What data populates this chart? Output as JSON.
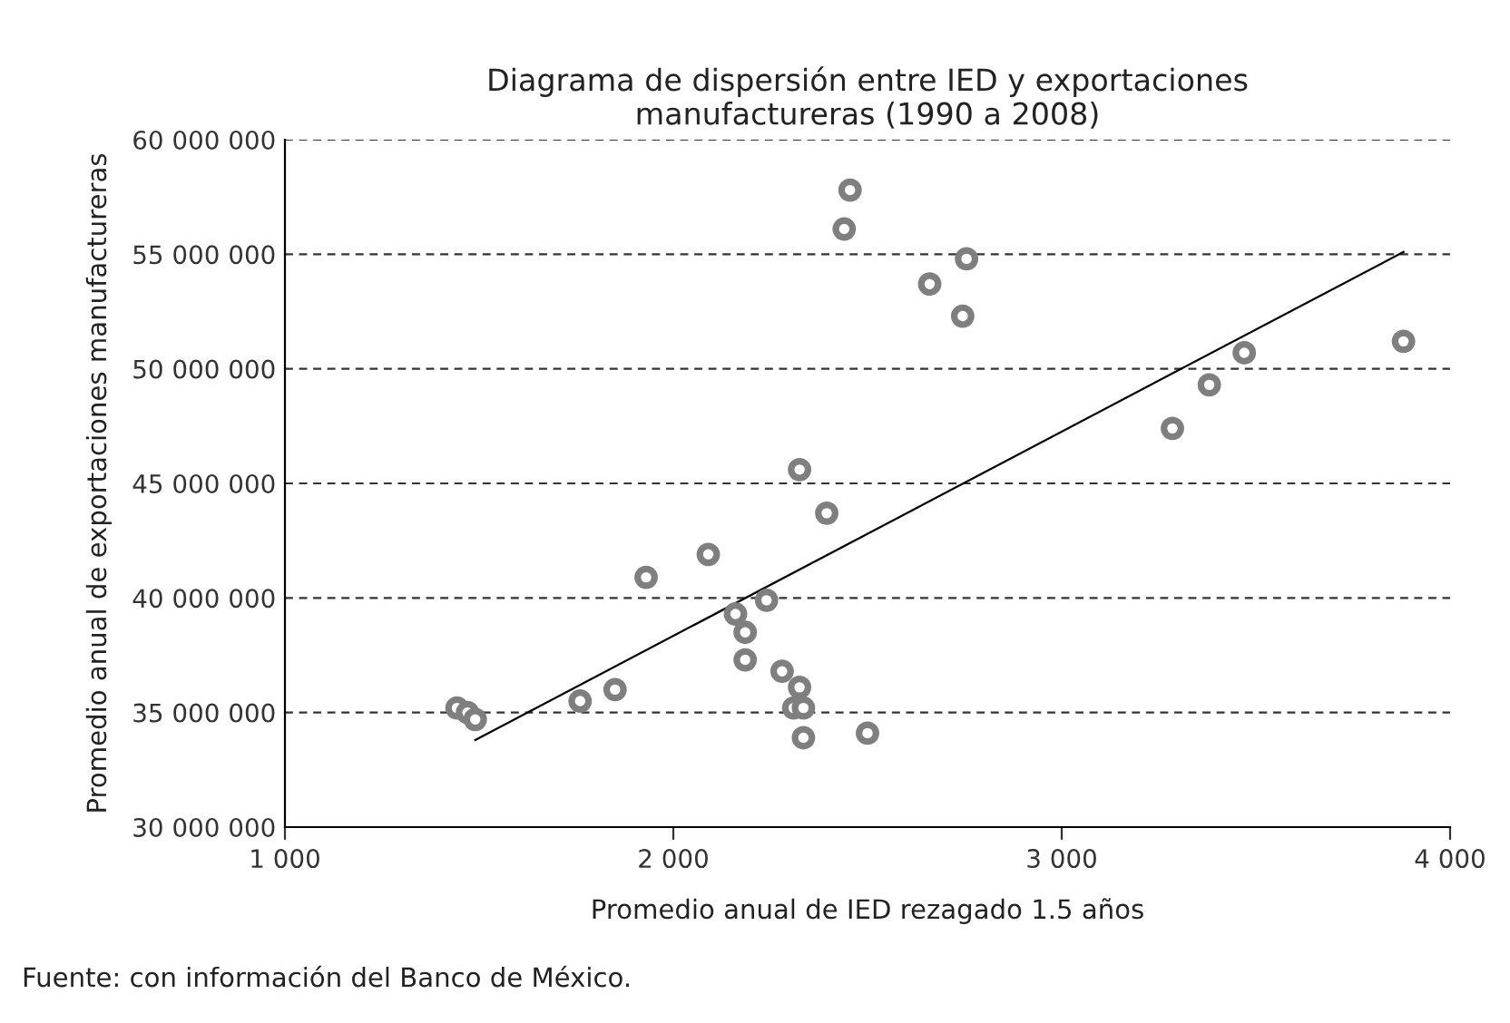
{
  "chart_data": {
    "type": "scatter",
    "title": "Diagrama de dispersión entre IED y exportaciones\nmanufactureras (1990 a 2008)",
    "xlabel": "Promedio anual de IED rezagado 1.5 años",
    "ylabel": "Promedio anual de exportaciones manufactureras",
    "annotations": [
      "Fuente: con información del Banco de México."
    ],
    "series": [
      {
        "color": "#7f7f7f",
        "marker": "circle",
        "x": [
          1443,
          1470,
          1490,
          1760,
          1850,
          1930,
          2090,
          2160,
          2185,
          2185,
          2240,
          2280,
          2310,
          2325,
          2335,
          2335,
          2500,
          2325,
          2395,
          2440,
          2455,
          2660,
          2745,
          2755,
          3285,
          3380,
          3470,
          3880
        ],
        "values": [
          35200000,
          35000000,
          34700000,
          35500000,
          36000000,
          40900000,
          41900000,
          39300000,
          38500000,
          37300000,
          39900000,
          36800000,
          35200000,
          36100000,
          35200000,
          33900000,
          34100000,
          45600000,
          43700000,
          56100000,
          57800000,
          53700000,
          52300000,
          54800000,
          47400000,
          49300000,
          50700000,
          51200000
        ]
      },
      {
        "type": "line",
        "color": "#000000",
        "marker": "none",
        "x": [
          1490,
          3880
        ],
        "values": [
          33800000,
          55100000
        ]
      }
    ],
    "xlim": [
      1000,
      4000
    ],
    "ylim": [
      30000000,
      60000000
    ],
    "xticks": [
      {
        "value": 1000,
        "label": "1 000"
      },
      {
        "value": 2000,
        "label": "2 000"
      },
      {
        "value": 3000,
        "label": "3 000"
      },
      {
        "value": 4000,
        "label": "4 000"
      }
    ],
    "yticks": [
      {
        "value": 30000000,
        "label": "30 000 000"
      },
      {
        "value": 35000000,
        "label": "35 000 000"
      },
      {
        "value": 40000000,
        "label": "40 000 000"
      },
      {
        "value": 45000000,
        "label": "45 000 000"
      },
      {
        "value": 50000000,
        "label": "50 000 000"
      },
      {
        "value": 55000000,
        "label": "55 000 000"
      },
      {
        "value": 60000000,
        "label": "60 000 000"
      }
    ],
    "grid": "y"
  }
}
